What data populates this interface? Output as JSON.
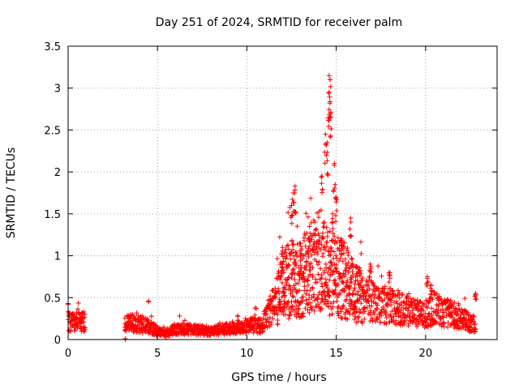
{
  "chart_data": {
    "type": "scatter",
    "title": "Day 251 of 2024, SRMTID for receiver palm",
    "xlabel": "GPS time / hours",
    "ylabel": "SRMTID / TECUs",
    "xlim": [
      0,
      24
    ],
    "ylim": [
      0,
      3.5
    ],
    "x_ticks": [
      0,
      5,
      10,
      15,
      20
    ],
    "y_ticks": [
      0,
      0.5,
      1,
      1.5,
      2,
      2.5,
      3,
      3.5
    ],
    "x_tick_labels": [
      "0",
      "5",
      "10",
      "15",
      "20"
    ],
    "y_tick_labels": [
      "0",
      "0.5",
      "1",
      "1.5",
      "2",
      "2.5",
      "3",
      "3.5"
    ],
    "grid": true,
    "marker": "+",
    "color": "#ff0000",
    "series": [
      {
        "name": "SRMTID",
        "profile": [
          [
            0.0,
            0.22
          ],
          [
            0.3,
            0.2
          ],
          [
            0.6,
            0.22
          ],
          [
            0.9,
            0.2
          ],
          [
            3.2,
            0.18
          ],
          [
            3.6,
            0.2
          ],
          [
            4.0,
            0.18
          ],
          [
            4.5,
            0.16
          ],
          [
            5.0,
            0.1
          ],
          [
            5.5,
            0.07
          ],
          [
            6.0,
            0.13
          ],
          [
            7.0,
            0.12
          ],
          [
            8.0,
            0.1
          ],
          [
            9.0,
            0.13
          ],
          [
            10.0,
            0.17
          ],
          [
            10.8,
            0.16
          ],
          [
            11.3,
            0.35
          ],
          [
            11.7,
            0.5
          ],
          [
            12.0,
            0.62
          ],
          [
            12.5,
            0.75
          ],
          [
            13.0,
            0.72
          ],
          [
            13.5,
            0.85
          ],
          [
            14.0,
            0.9
          ],
          [
            14.5,
            0.85
          ],
          [
            15.0,
            0.75
          ],
          [
            15.5,
            0.7
          ],
          [
            16.0,
            0.55
          ],
          [
            16.5,
            0.5
          ],
          [
            17.0,
            0.48
          ],
          [
            17.5,
            0.42
          ],
          [
            18.0,
            0.4
          ],
          [
            18.5,
            0.38
          ],
          [
            19.0,
            0.35
          ],
          [
            19.5,
            0.3
          ],
          [
            20.0,
            0.3
          ],
          [
            20.5,
            0.38
          ],
          [
            21.0,
            0.32
          ],
          [
            21.5,
            0.3
          ],
          [
            22.0,
            0.25
          ],
          [
            22.5,
            0.2
          ],
          [
            22.8,
            0.18
          ]
        ],
        "gaps": [
          [
            0.95,
            3.15
          ]
        ],
        "isolated_points": [
          [
            3.2,
            0.0
          ],
          [
            4.5,
            0.45
          ],
          [
            0.0,
            0.42
          ]
        ],
        "peaks": [
          [
            12.7,
            1.83
          ],
          [
            12.6,
            1.75
          ],
          [
            12.5,
            1.6
          ],
          [
            13.5,
            1.35
          ],
          [
            14.2,
            1.95
          ],
          [
            14.4,
            2.45
          ],
          [
            14.5,
            2.35
          ],
          [
            14.6,
            3.15
          ],
          [
            14.65,
            3.1
          ],
          [
            14.6,
            2.95
          ],
          [
            14.7,
            2.7
          ],
          [
            14.9,
            2.1
          ],
          [
            15.0,
            1.7
          ],
          [
            14.8,
            1.5
          ],
          [
            15.8,
            1.45
          ],
          [
            16.9,
            0.9
          ],
          [
            18.0,
            0.8
          ],
          [
            20.1,
            0.75
          ],
          [
            20.3,
            0.65
          ],
          [
            22.8,
            0.55
          ],
          [
            12.0,
            1.1
          ],
          [
            13.0,
            1.15
          ],
          [
            15.3,
            1.2
          ]
        ]
      }
    ]
  }
}
